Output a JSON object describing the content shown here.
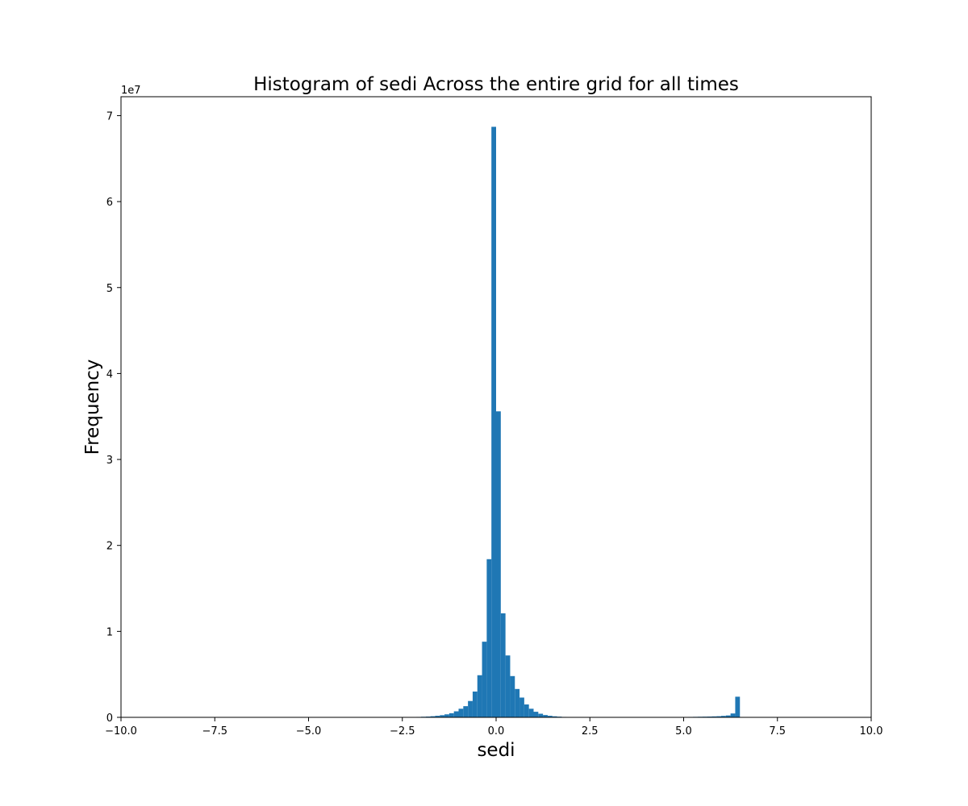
{
  "chart_data": {
    "type": "bar",
    "title": "Histogram of sedi Across the entire grid for all times",
    "xlabel": "sedi",
    "ylabel": "Frequency",
    "y_offset_label": "1e7",
    "xlim": [
      -10.0,
      10.0
    ],
    "ylim": [
      0,
      72200000
    ],
    "xticks": [
      -10.0,
      -7.5,
      -5.0,
      -2.5,
      0.0,
      2.5,
      5.0,
      7.5,
      10.0
    ],
    "xtick_labels": [
      "−10.0",
      "−7.5",
      "−5.0",
      "−2.5",
      "0.0",
      "2.5",
      "5.0",
      "7.5",
      "10.0"
    ],
    "yticks": [
      0,
      10000000,
      20000000,
      30000000,
      40000000,
      50000000,
      60000000,
      70000000
    ],
    "ytick_labels": [
      "0",
      "1",
      "2",
      "3",
      "4",
      "5",
      "6",
      "7"
    ],
    "bar_color": "#1f77b4",
    "grid": false,
    "bin_width": 0.125,
    "bins": [
      {
        "x0": -2.25,
        "value": 30000
      },
      {
        "x0": -2.125,
        "value": 50000
      },
      {
        "x0": -2.0,
        "value": 70000
      },
      {
        "x0": -1.875,
        "value": 90000
      },
      {
        "x0": -1.75,
        "value": 130000
      },
      {
        "x0": -1.625,
        "value": 180000
      },
      {
        "x0": -1.5,
        "value": 250000
      },
      {
        "x0": -1.375,
        "value": 350000
      },
      {
        "x0": -1.25,
        "value": 480000
      },
      {
        "x0": -1.125,
        "value": 700000
      },
      {
        "x0": -1.0,
        "value": 1000000
      },
      {
        "x0": -0.875,
        "value": 1300000
      },
      {
        "x0": -0.75,
        "value": 1900000
      },
      {
        "x0": -0.625,
        "value": 3000000
      },
      {
        "x0": -0.5,
        "value": 4900000
      },
      {
        "x0": -0.375,
        "value": 8800000
      },
      {
        "x0": -0.25,
        "value": 18400000
      },
      {
        "x0": -0.125,
        "value": 68700000
      },
      {
        "x0": 0.0,
        "value": 35600000
      },
      {
        "x0": 0.125,
        "value": 12100000
      },
      {
        "x0": 0.25,
        "value": 7200000
      },
      {
        "x0": 0.375,
        "value": 4800000
      },
      {
        "x0": 0.5,
        "value": 3300000
      },
      {
        "x0": 0.625,
        "value": 2300000
      },
      {
        "x0": 0.75,
        "value": 1500000
      },
      {
        "x0": 0.875,
        "value": 1000000
      },
      {
        "x0": 1.0,
        "value": 650000
      },
      {
        "x0": 1.125,
        "value": 420000
      },
      {
        "x0": 1.25,
        "value": 270000
      },
      {
        "x0": 1.375,
        "value": 180000
      },
      {
        "x0": 1.5,
        "value": 120000
      },
      {
        "x0": 1.625,
        "value": 80000
      },
      {
        "x0": 1.75,
        "value": 50000
      },
      {
        "x0": 1.875,
        "value": 30000
      },
      {
        "x0": 2.0,
        "value": 20000
      },
      {
        "x0": 4.875,
        "value": 20000
      },
      {
        "x0": 5.0,
        "value": 40000
      },
      {
        "x0": 5.125,
        "value": 50000
      },
      {
        "x0": 5.25,
        "value": 60000
      },
      {
        "x0": 5.375,
        "value": 70000
      },
      {
        "x0": 5.5,
        "value": 80000
      },
      {
        "x0": 5.625,
        "value": 90000
      },
      {
        "x0": 5.75,
        "value": 110000
      },
      {
        "x0": 5.875,
        "value": 130000
      },
      {
        "x0": 6.0,
        "value": 170000
      },
      {
        "x0": 6.125,
        "value": 220000
      },
      {
        "x0": 6.25,
        "value": 450000
      },
      {
        "x0": 6.375,
        "value": 2400000
      }
    ]
  }
}
